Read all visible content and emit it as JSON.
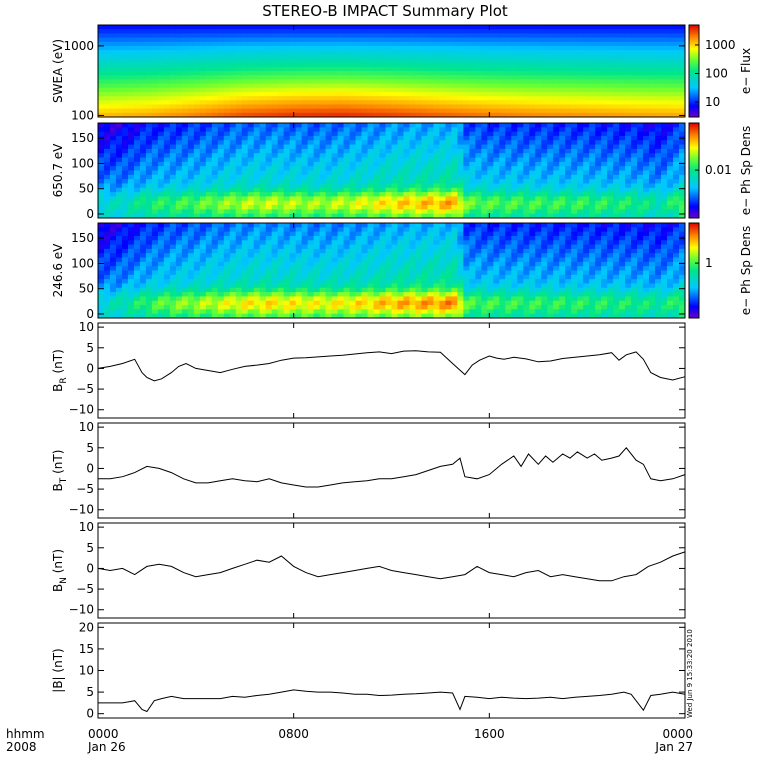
{
  "title": "STEREO-B IMPACT Summary Plot",
  "timestamp": "Wed Jun  9 15:33:20 2010",
  "x_axis": {
    "row1_label": "hhmm",
    "row2_label": "2008",
    "ticks": [
      {
        "hours": 0,
        "label": "0000",
        "date": "Jan 26"
      },
      {
        "hours": 8,
        "label": "0800",
        "date": ""
      },
      {
        "hours": 16,
        "label": "1600",
        "date": ""
      },
      {
        "hours": 24,
        "label": "0000",
        "date": "Jan 27"
      }
    ],
    "range_hours": [
      0,
      24
    ]
  },
  "colors": {
    "line": "#000000",
    "frame": "#000000"
  },
  "chart_data": [
    {
      "type": "heatmap",
      "id": "swea",
      "ylabel": "SWEA (eV)",
      "yscale": "log",
      "ylim": [
        95,
        2000
      ],
      "yticks": [
        {
          "value": 100,
          "label": "100"
        },
        {
          "value": 1000,
          "label": "1000"
        }
      ],
      "colorbar": {
        "label": "e− Flux",
        "scale": "log",
        "range": [
          3,
          5000
        ],
        "ticks": [
          {
            "value": 10,
            "label": "10"
          },
          {
            "value": 100,
            "label": "100"
          },
          {
            "value": 1000,
            "label": "1000"
          }
        ]
      },
      "time_profile": [
        [
          0,
          0.45
        ],
        [
          2,
          0.5
        ],
        [
          4,
          0.6
        ],
        [
          6,
          0.72
        ],
        [
          8,
          0.78
        ],
        [
          10,
          0.8
        ],
        [
          12,
          0.75
        ],
        [
          14,
          0.68
        ],
        [
          16,
          0.62
        ],
        [
          18,
          0.58
        ],
        [
          20,
          0.55
        ],
        [
          22,
          0.52
        ],
        [
          24,
          0.5
        ]
      ]
    },
    {
      "type": "heatmap",
      "id": "pad650",
      "ylabel": "650.7 eV",
      "ylim": [
        -8,
        180
      ],
      "yticks": [
        {
          "value": 0,
          "label": "0"
        },
        {
          "value": 50,
          "label": "50"
        },
        {
          "value": 100,
          "label": "100"
        },
        {
          "value": 150,
          "label": "150"
        }
      ],
      "colorbar": {
        "label": "e− Ph Sp Dens",
        "scale": "log",
        "range": [
          0.0008,
          0.12
        ],
        "ticks": [
          {
            "value": 0.01,
            "label": "0.01"
          }
        ]
      },
      "time_profile": [
        [
          0,
          0.28
        ],
        [
          1,
          0.3
        ],
        [
          2,
          0.45
        ],
        [
          3,
          0.5
        ],
        [
          4,
          0.55
        ],
        [
          5,
          0.62
        ],
        [
          6,
          0.68
        ],
        [
          7,
          0.7
        ],
        [
          8,
          0.68
        ],
        [
          9,
          0.66
        ],
        [
          10,
          0.7
        ],
        [
          11,
          0.75
        ],
        [
          12,
          0.82
        ],
        [
          13,
          0.85
        ],
        [
          14,
          0.88
        ],
        [
          14.7,
          0.9
        ],
        [
          15,
          0.6
        ],
        [
          16,
          0.55
        ],
        [
          18,
          0.52
        ],
        [
          20,
          0.5
        ],
        [
          22,
          0.45
        ],
        [
          23,
          0.35
        ],
        [
          24,
          0.6
        ]
      ]
    },
    {
      "type": "heatmap",
      "id": "pad246",
      "ylabel": "246.6 eV",
      "ylim": [
        -8,
        180
      ],
      "yticks": [
        {
          "value": 0,
          "label": "0"
        },
        {
          "value": 50,
          "label": "50"
        },
        {
          "value": 100,
          "label": "100"
        },
        {
          "value": 150,
          "label": "150"
        }
      ],
      "colorbar": {
        "label": "e− Ph Sp Dens",
        "scale": "log",
        "range": [
          0.15,
          4
        ],
        "ticks": [
          {
            "value": 1,
            "label": "1"
          }
        ]
      },
      "time_profile": [
        [
          0,
          0.25
        ],
        [
          1,
          0.35
        ],
        [
          2,
          0.5
        ],
        [
          3,
          0.6
        ],
        [
          4,
          0.65
        ],
        [
          5,
          0.72
        ],
        [
          6,
          0.78
        ],
        [
          7,
          0.8
        ],
        [
          8,
          0.78
        ],
        [
          9,
          0.76
        ],
        [
          10,
          0.78
        ],
        [
          11,
          0.82
        ],
        [
          12,
          0.88
        ],
        [
          13,
          0.9
        ],
        [
          14,
          0.92
        ],
        [
          14.7,
          0.95
        ],
        [
          15,
          0.55
        ],
        [
          16,
          0.52
        ],
        [
          18,
          0.5
        ],
        [
          20,
          0.48
        ],
        [
          22,
          0.45
        ],
        [
          23,
          0.4
        ],
        [
          24,
          0.55
        ]
      ]
    },
    {
      "type": "line",
      "id": "br",
      "ylabel_main": "B",
      "ylabel_sub": "R",
      "ylabel_tail": " (nT)",
      "ylim": [
        -12,
        11
      ],
      "yticks": [
        {
          "value": -10,
          "label": "−10"
        },
        {
          "value": -5,
          "label": "−5"
        },
        {
          "value": 0,
          "label": "0"
        },
        {
          "value": 5,
          "label": "5"
        },
        {
          "value": 10,
          "label": "10"
        }
      ],
      "x_hours": [
        0,
        0.5,
        1,
        1.5,
        1.8,
        2,
        2.3,
        2.6,
        3,
        3.3,
        3.6,
        4,
        4.5,
        5,
        5.5,
        6,
        6.5,
        7,
        7.5,
        8,
        8.5,
        9,
        9.5,
        10,
        10.5,
        11,
        11.5,
        12,
        12.5,
        13,
        13.5,
        14,
        14.5,
        15,
        15.3,
        15.6,
        16,
        16.3,
        16.6,
        17,
        17.5,
        18,
        18.5,
        19,
        19.5,
        20,
        20.5,
        21,
        21.3,
        21.6,
        22,
        22.3,
        22.6,
        23,
        23.5,
        24
      ],
      "values": [
        0,
        0.5,
        1.2,
        2.2,
        -1,
        -2.2,
        -3,
        -2.5,
        -1,
        0.5,
        1.2,
        0,
        -0.5,
        -1,
        -0.2,
        0.5,
        0.8,
        1.2,
        2,
        2.5,
        2.6,
        2.8,
        3,
        3.2,
        3.5,
        3.8,
        4,
        3.6,
        4.2,
        4.3,
        4,
        3.9,
        1.2,
        -1.5,
        0.8,
        2,
        3,
        2.5,
        2.2,
        2.7,
        2.3,
        1.6,
        1.8,
        2.4,
        2.7,
        3,
        3.3,
        3.8,
        2,
        3.3,
        4,
        2.2,
        -1,
        -2.2,
        -2.8,
        -2
      ]
    },
    {
      "type": "line",
      "id": "bt",
      "ylabel_main": "B",
      "ylabel_sub": "T",
      "ylabel_tail": " (nT)",
      "ylim": [
        -12,
        11
      ],
      "yticks": [
        {
          "value": -10,
          "label": "−10"
        },
        {
          "value": -5,
          "label": "−5"
        },
        {
          "value": 0,
          "label": "0"
        },
        {
          "value": 5,
          "label": "5"
        },
        {
          "value": 10,
          "label": "10"
        }
      ],
      "x_hours": [
        0,
        0.5,
        1,
        1.5,
        2,
        2.5,
        3,
        3.5,
        4,
        4.5,
        5,
        5.5,
        6,
        6.5,
        7,
        7.5,
        8,
        8.5,
        9,
        9.5,
        10,
        10.5,
        11,
        11.5,
        12,
        12.5,
        13,
        13.5,
        14,
        14.5,
        14.8,
        15,
        15.5,
        16,
        16.5,
        17,
        17.3,
        17.6,
        18,
        18.3,
        18.6,
        19,
        19.3,
        19.6,
        20,
        20.3,
        20.6,
        21,
        21.3,
        21.6,
        22,
        22.3,
        22.6,
        23,
        23.5,
        24
      ],
      "values": [
        -2.5,
        -2.5,
        -2,
        -1,
        0.5,
        0,
        -1,
        -2.5,
        -3.5,
        -3.5,
        -3,
        -2.5,
        -3,
        -3.2,
        -2.5,
        -3.5,
        -4,
        -4.5,
        -4.5,
        -4,
        -3.5,
        -3.2,
        -3,
        -2.5,
        -2.5,
        -2,
        -1.5,
        -0.5,
        0.5,
        1,
        2.5,
        -2,
        -2.5,
        -1.5,
        1,
        3,
        0.5,
        3.5,
        1,
        3,
        1.5,
        3.5,
        2.5,
        4,
        2.5,
        3.5,
        2,
        2.5,
        3,
        5,
        2,
        1,
        -2.5,
        -3,
        -2.5,
        -1.5
      ]
    },
    {
      "type": "line",
      "id": "bn",
      "ylabel_main": "B",
      "ylabel_sub": "N",
      "ylabel_tail": " (nT)",
      "ylim": [
        -12,
        11
      ],
      "yticks": [
        {
          "value": -10,
          "label": "−10"
        },
        {
          "value": -5,
          "label": "−5"
        },
        {
          "value": 0,
          "label": "0"
        },
        {
          "value": 5,
          "label": "5"
        },
        {
          "value": 10,
          "label": "10"
        }
      ],
      "x_hours": [
        0,
        0.5,
        1,
        1.5,
        2,
        2.5,
        3,
        3.5,
        4,
        4.5,
        5,
        5.5,
        6,
        6.5,
        7,
        7.5,
        8,
        8.5,
        9,
        9.5,
        10,
        10.5,
        11,
        11.5,
        12,
        12.5,
        13,
        13.5,
        14,
        14.5,
        15,
        15.5,
        16,
        16.5,
        17,
        17.5,
        18,
        18.5,
        19,
        19.5,
        20,
        20.5,
        21,
        21.5,
        22,
        22.5,
        23,
        23.5,
        24
      ],
      "values": [
        0,
        -0.5,
        0,
        -1.5,
        0.5,
        1,
        0.5,
        -1,
        -2,
        -1.5,
        -1,
        0,
        1,
        2,
        1.5,
        3,
        0.5,
        -1,
        -2,
        -1.5,
        -1,
        -0.5,
        0,
        0.5,
        -0.5,
        -1,
        -1.5,
        -2,
        -2.5,
        -2,
        -1.5,
        0.5,
        -1,
        -1.5,
        -2,
        -1,
        -0.5,
        -2,
        -1.5,
        -2,
        -2.5,
        -3,
        -3,
        -2,
        -1.5,
        0.5,
        1.5,
        3,
        4
      ]
    },
    {
      "type": "line",
      "id": "bmag",
      "ylabel": "|B| (nT)",
      "ylim": [
        -1,
        21
      ],
      "yticks": [
        {
          "value": 0,
          "label": "0"
        },
        {
          "value": 5,
          "label": "5"
        },
        {
          "value": 10,
          "label": "10"
        },
        {
          "value": 15,
          "label": "15"
        },
        {
          "value": 20,
          "label": "20"
        }
      ],
      "x_hours": [
        0,
        0.5,
        1,
        1.5,
        1.8,
        2,
        2.3,
        2.6,
        3,
        3.5,
        4,
        4.5,
        5,
        5.5,
        6,
        6.5,
        7,
        7.5,
        8,
        8.5,
        9,
        9.5,
        10,
        10.5,
        11,
        11.5,
        12,
        12.5,
        13,
        13.5,
        14,
        14.5,
        14.8,
        15,
        15.5,
        16,
        16.5,
        17,
        17.5,
        18,
        18.5,
        19,
        19.5,
        20,
        20.5,
        21,
        21.5,
        21.8,
        22,
        22.3,
        22.6,
        23,
        23.5,
        24
      ],
      "values": [
        2.5,
        2.5,
        2.5,
        3,
        1,
        0.5,
        3,
        3.5,
        4,
        3.5,
        3.5,
        3.5,
        3.5,
        4,
        3.8,
        4.2,
        4.5,
        5,
        5.5,
        5.2,
        5,
        5,
        4.8,
        4.5,
        4.5,
        4.2,
        4.3,
        4.5,
        4.6,
        4.8,
        5,
        4.8,
        1,
        4,
        3.8,
        3.5,
        3.8,
        3.6,
        3.5,
        3.6,
        3.8,
        3.5,
        3.8,
        4,
        4.2,
        4.5,
        5,
        4.5,
        3,
        0.8,
        4.2,
        4.5,
        5,
        4.5
      ]
    }
  ]
}
